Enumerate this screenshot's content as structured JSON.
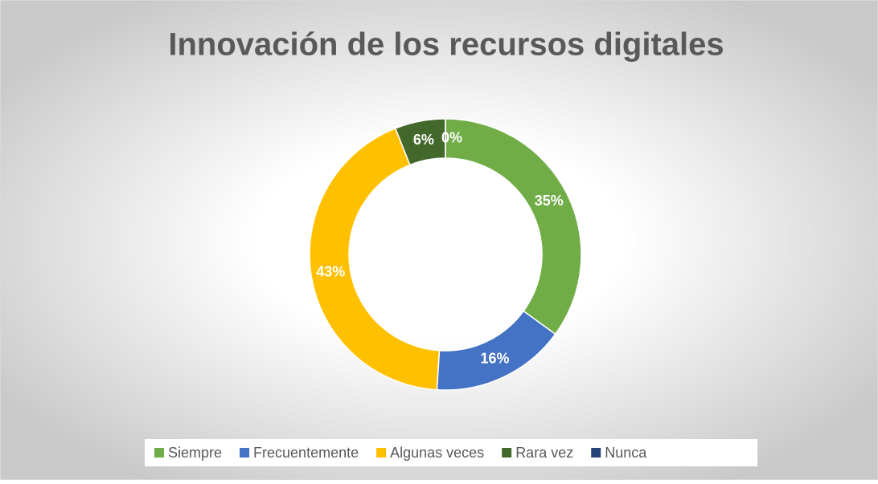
{
  "chart_data": {
    "type": "donut",
    "title": "Innovación de los recursos digitales",
    "categories": [
      "Siempre",
      "Frecuentemente",
      "Algunas veces",
      "Rara vez",
      "Nunca"
    ],
    "values": [
      35,
      16,
      43,
      6,
      0
    ],
    "value_labels": [
      "35%",
      "16%",
      "43%",
      "6%",
      "0%"
    ],
    "colors": [
      "#70ad47",
      "#4472c4",
      "#ffc000",
      "#43682b",
      "#264478"
    ],
    "legend": "bottom"
  }
}
